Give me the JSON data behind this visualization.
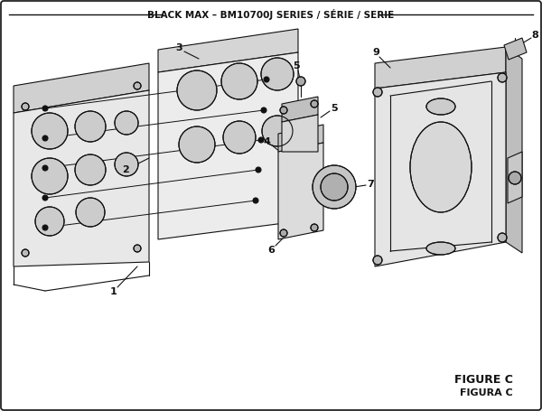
{
  "title": "BLACK MAX – BM10700J SERIES / SÉRIE / SERIE",
  "figure_label": "FIGURE C",
  "figura_label": "FIGURA C",
  "bg_color": "#ffffff",
  "lc": "#111111",
  "lw": 0.8
}
